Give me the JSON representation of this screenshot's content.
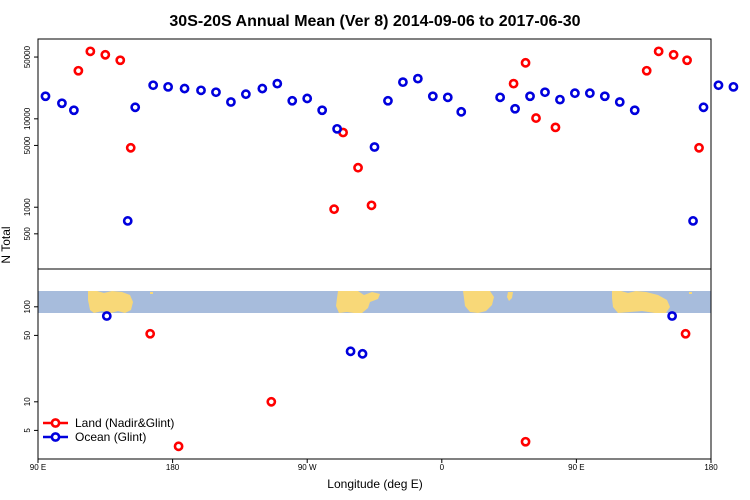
{
  "colors": {
    "land": "#ff0000",
    "ocean": "#0000dd",
    "map_ocean": "#a7bcdc",
    "map_land": "#f8d878",
    "frame": "#000000"
  },
  "chart_data": {
    "type": "scatter",
    "title": "30S-20S Annual Mean (Ver 8)   2014-09-06 to 2017-06-30",
    "xlabel": "Longitude (deg E)",
    "ylabel": "N Total",
    "x_range": [
      90,
      450
    ],
    "x_ticks": [
      {
        "value": 90,
        "label": "90 E"
      },
      {
        "value": 180,
        "label": "180"
      },
      {
        "value": 270,
        "label": "90 W"
      },
      {
        "value": 360,
        "label": "0"
      },
      {
        "value": 450,
        "label": "90 E"
      },
      {
        "value": 540,
        "label": "180"
      }
    ],
    "x_range_deg": [
      90,
      540
    ],
    "top_panel": {
      "scale": "log",
      "ylim": [
        200,
        80000
      ],
      "y_ticks": [
        {
          "value": 500,
          "label": "500"
        },
        {
          "value": 1000,
          "label": "1000"
        },
        {
          "value": 5000,
          "label": "5000"
        },
        {
          "value": 10000,
          "label": "10000"
        },
        {
          "value": 50000,
          "label": "50000"
        }
      ],
      "series": [
        {
          "name": "Land (Nadir&Glint)",
          "color": "land",
          "points": [
            [
              117,
              35000
            ],
            [
              125,
              58000
            ],
            [
              135,
              53000
            ],
            [
              145,
              46000
            ],
            [
              152,
              4700
            ],
            [
              288,
              950
            ],
            [
              294,
              7000
            ],
            [
              304,
              2800
            ],
            [
              313,
              1050
            ],
            [
              408,
              25000
            ],
            [
              416,
              43000
            ],
            [
              423,
              10200
            ],
            [
              436,
              8000
            ],
            [
              497,
              35000
            ],
            [
              505,
              58000
            ],
            [
              515,
              53000
            ],
            [
              524,
              46000
            ],
            [
              532,
              4700
            ]
          ]
        },
        {
          "name": "Ocean (Glint)",
          "color": "ocean",
          "points": [
            [
              95,
              18000
            ],
            [
              106,
              15000
            ],
            [
              114,
              12500
            ],
            [
              150,
              700
            ],
            [
              155,
              13500
            ],
            [
              167,
              24000
            ],
            [
              177,
              23000
            ],
            [
              188,
              22000
            ],
            [
              199,
              21000
            ],
            [
              209,
              20000
            ],
            [
              219,
              15500
            ],
            [
              229,
              19000
            ],
            [
              240,
              22000
            ],
            [
              250,
              25000
            ],
            [
              260,
              16000
            ],
            [
              270,
              17000
            ],
            [
              280,
              12500
            ],
            [
              290,
              7700
            ],
            [
              315,
              4800
            ],
            [
              324,
              16000
            ],
            [
              334,
              26000
            ],
            [
              344,
              28500
            ],
            [
              354,
              18000
            ],
            [
              364,
              17500
            ],
            [
              373,
              12000
            ],
            [
              399,
              17500
            ],
            [
              409,
              13000
            ],
            [
              419,
              18000
            ],
            [
              429,
              20000
            ],
            [
              439,
              16500
            ],
            [
              449,
              19500
            ],
            [
              459,
              19500
            ],
            [
              469,
              18000
            ],
            [
              479,
              15500
            ],
            [
              489,
              12500
            ],
            [
              528,
              700
            ],
            [
              535,
              13500
            ],
            [
              545,
              24000
            ],
            [
              555,
              23000
            ]
          ]
        }
      ]
    },
    "bottom_panel": {
      "scale": "log",
      "ylim": [
        2.5,
        250
      ],
      "y_ticks": [
        {
          "value": 5,
          "label": "5"
        },
        {
          "value": 10,
          "label": "10"
        },
        {
          "value": 50,
          "label": "50"
        },
        {
          "value": 100,
          "label": "100"
        }
      ],
      "series": [
        {
          "name": "Land (Nadir&Glint)",
          "color": "land",
          "points": [
            [
              165,
              52
            ],
            [
              184,
              3.4
            ],
            [
              246,
              10
            ],
            [
              416,
              3.8
            ],
            [
              523,
              52
            ]
          ]
        },
        {
          "name": "Ocean (Glint)",
          "color": "ocean",
          "points": [
            [
              136,
              80
            ],
            [
              299,
              34
            ],
            [
              307,
              32
            ],
            [
              514,
              80
            ]
          ]
        }
      ]
    },
    "legend": {
      "placement": "bottom-left",
      "entries": [
        {
          "label": "Land (Nadir&Glint)",
          "color": "land"
        },
        {
          "label": "Ocean (Glint)",
          "color": "ocean"
        }
      ]
    }
  }
}
